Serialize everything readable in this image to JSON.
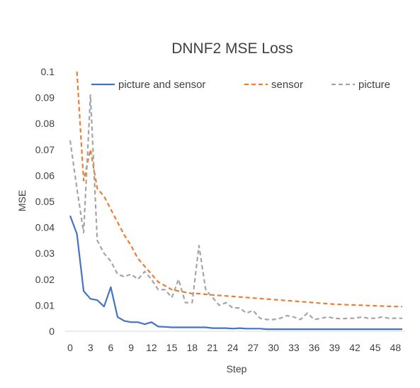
{
  "chart_data": {
    "type": "line",
    "title": "DNNF2 MSE Loss",
    "xlabel": "Step",
    "ylabel": "MSE",
    "xlim": [
      0,
      49
    ],
    "ylim": [
      0,
      0.1
    ],
    "x_ticks": [
      "0",
      "3",
      "6",
      "9",
      "12",
      "15",
      "18",
      "21",
      "24",
      "27",
      "30",
      "33",
      "36",
      "39",
      "42",
      "45",
      "48"
    ],
    "y_ticks": [
      "0",
      "0.01",
      "0.02",
      "0.03",
      "0.04",
      "0.05",
      "0.06",
      "0.07",
      "0.08",
      "0.09",
      "0.1"
    ],
    "grid": false,
    "legend_position": "top",
    "series": [
      {
        "name": "picture and sensor",
        "color": "#4472C4",
        "dash": "solid",
        "values": [
          0.0445,
          0.0375,
          0.0155,
          0.0125,
          0.012,
          0.0095,
          0.017,
          0.0055,
          0.004,
          0.0035,
          0.0035,
          0.0027,
          0.0035,
          0.0018,
          0.0017,
          0.0015,
          0.0015,
          0.0015,
          0.0015,
          0.0015,
          0.0015,
          0.0012,
          0.0012,
          0.0012,
          0.001,
          0.0012,
          0.001,
          0.001,
          0.001,
          0.0008,
          0.0008,
          0.0008,
          0.0008,
          0.0008,
          0.0008,
          0.0008,
          0.0008,
          0.0008,
          0.0008,
          0.0008,
          0.0008,
          0.0008,
          0.0008,
          0.0008,
          0.0008,
          0.0008,
          0.0008,
          0.0008,
          0.0008,
          0.0008
        ]
      },
      {
        "name": "sensor",
        "color": "#ED7D31",
        "dash": "dash",
        "values": [
          null,
          0.1,
          0.058,
          0.07,
          0.055,
          0.052,
          0.047,
          0.042,
          0.037,
          0.033,
          0.028,
          0.025,
          0.022,
          0.019,
          0.0175,
          0.016,
          0.0155,
          0.015,
          0.0145,
          0.0145,
          0.0142,
          0.014,
          0.0138,
          0.0136,
          0.0134,
          0.0132,
          0.013,
          0.0128,
          0.0126,
          0.0124,
          0.0122,
          0.012,
          0.0118,
          0.0116,
          0.0114,
          0.0112,
          0.011,
          0.0108,
          0.0106,
          0.0104,
          0.0103,
          0.0102,
          0.0101,
          0.01,
          0.0099,
          0.0098,
          0.0097,
          0.0096,
          0.0095,
          0.0095
        ]
      },
      {
        "name": "picture",
        "color": "#A5A5A5",
        "dash": "dash",
        "values": [
          0.0735,
          0.055,
          0.038,
          0.091,
          0.035,
          0.03,
          0.027,
          0.022,
          0.021,
          0.022,
          0.02,
          0.023,
          0.02,
          0.016,
          0.016,
          0.013,
          0.02,
          0.011,
          0.011,
          0.033,
          0.016,
          0.013,
          0.01,
          0.011,
          0.009,
          0.009,
          0.007,
          0.008,
          0.005,
          0.0045,
          0.0045,
          0.005,
          0.006,
          0.0055,
          0.0045,
          0.007,
          0.0045,
          0.005,
          0.0055,
          0.005,
          0.0048,
          0.005,
          0.005,
          0.0055,
          0.005,
          0.005,
          0.0055,
          0.005,
          0.005,
          0.005
        ]
      }
    ]
  }
}
